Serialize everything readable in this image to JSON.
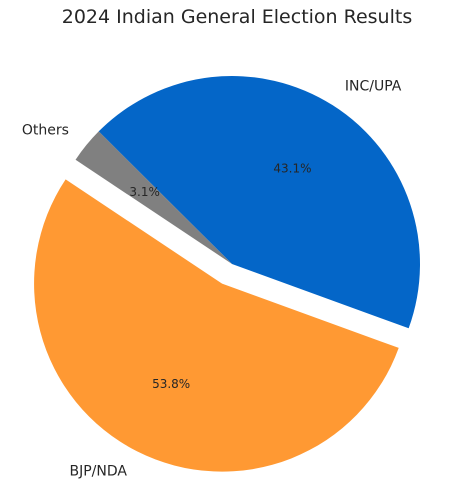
{
  "chart_data": {
    "type": "pie",
    "title": "2024 Indian General Election Results",
    "slices": [
      {
        "label": "INC/UPA",
        "value": 43.1,
        "value_label": "43.1%",
        "color": "#0466C8",
        "exploded": false
      },
      {
        "label": "Others",
        "value": 3.1,
        "value_label": "3.1%",
        "color": "#808080",
        "exploded": false
      },
      {
        "label": "BJP/NDA",
        "value": 53.8,
        "value_label": "53.8%",
        "color": "#FF9933",
        "exploded": true
      }
    ],
    "start_angle_deg": -20,
    "direction": "counterclockwise"
  }
}
